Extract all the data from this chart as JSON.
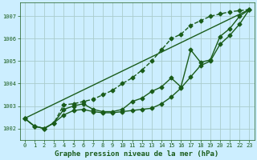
{
  "title": "Graphe pression niveau de la mer (hPa)",
  "background_color": "#cceeff",
  "grid_color": "#aacccc",
  "line_color": "#1a5c1a",
  "xlim": [
    -0.5,
    23.5
  ],
  "ylim": [
    1001.5,
    1007.6
  ],
  "yticks": [
    1002,
    1003,
    1004,
    1005,
    1006,
    1007
  ],
  "xticks": [
    0,
    1,
    2,
    3,
    4,
    5,
    6,
    7,
    8,
    9,
    10,
    11,
    12,
    13,
    14,
    15,
    16,
    17,
    18,
    19,
    20,
    21,
    22,
    23
  ],
  "series": [
    {
      "x": [
        0,
        1,
        2,
        3,
        4,
        5,
        6,
        7,
        8,
        9,
        10,
        11,
        12,
        13,
        14,
        15,
        16,
        17,
        18,
        19,
        20,
        21,
        22,
        23
      ],
      "y": [
        1002.45,
        1002.1,
        1002.0,
        1002.25,
        1003.05,
        1003.1,
        1003.2,
        1003.3,
        1003.5,
        1003.7,
        1004.0,
        1004.25,
        1004.6,
        1005.0,
        1005.5,
        1006.0,
        1006.2,
        1006.6,
        1006.8,
        1007.0,
        1007.1,
        1007.2,
        1007.25,
        1007.3
      ],
      "marker": "D",
      "markersize": 2.5,
      "linewidth": 1.0,
      "linestyle": "--"
    },
    {
      "x": [
        0,
        1,
        2,
        3,
        4,
        5,
        6,
        7,
        8,
        9,
        10,
        11,
        12,
        13,
        14,
        15,
        16,
        17,
        18,
        19,
        20,
        21,
        22,
        23
      ],
      "y": [
        1002.45,
        1002.1,
        1002.0,
        1002.25,
        1002.85,
        1003.0,
        1003.1,
        1002.85,
        1002.75,
        1002.75,
        1002.85,
        1003.2,
        1003.35,
        1003.65,
        1003.85,
        1004.25,
        1003.85,
        1005.5,
        1004.95,
        1005.05,
        1006.1,
        1006.45,
        1007.0,
        1007.3
      ],
      "marker": "D",
      "markersize": 2.5,
      "linewidth": 1.0,
      "linestyle": "-"
    },
    {
      "x": [
        0,
        23
      ],
      "y": [
        1002.45,
        1007.3
      ],
      "marker": null,
      "markersize": 0,
      "linewidth": 1.0,
      "linestyle": "-"
    },
    {
      "x": [
        0,
        1,
        2,
        3,
        4,
        5,
        6,
        7,
        8,
        9,
        10,
        11,
        12,
        13,
        14,
        15,
        16,
        17,
        18,
        19,
        20,
        21,
        22,
        23
      ],
      "y": [
        1002.45,
        1002.1,
        1002.0,
        1002.25,
        1002.6,
        1002.8,
        1002.85,
        1002.75,
        1002.7,
        1002.7,
        1002.75,
        1002.8,
        1002.85,
        1002.9,
        1003.1,
        1003.4,
        1003.8,
        1004.3,
        1004.8,
        1005.0,
        1005.75,
        1006.15,
        1006.65,
        1007.3
      ],
      "marker": "D",
      "markersize": 2.5,
      "linewidth": 1.0,
      "linestyle": "-"
    }
  ]
}
